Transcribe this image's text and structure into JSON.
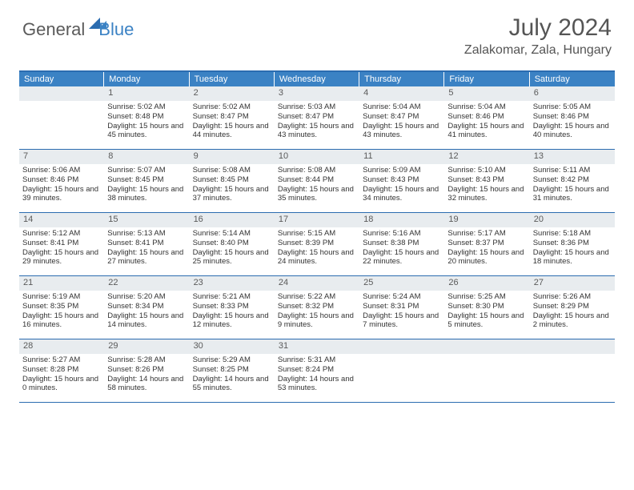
{
  "logo": {
    "text1": "General",
    "text2": "Blue"
  },
  "title": "July 2024",
  "location": "Zalakomar, Zala, Hungary",
  "colors": {
    "header_bg": "#3b82c4",
    "border": "#2b6cb0",
    "daynum_bg": "#e8ecef",
    "text": "#333333",
    "title_text": "#555555"
  },
  "weekdays": [
    "Sunday",
    "Monday",
    "Tuesday",
    "Wednesday",
    "Thursday",
    "Friday",
    "Saturday"
  ],
  "weeks": [
    [
      {
        "n": "",
        "sr": "",
        "ss": "",
        "dl": ""
      },
      {
        "n": "1",
        "sr": "Sunrise: 5:02 AM",
        "ss": "Sunset: 8:48 PM",
        "dl": "Daylight: 15 hours and 45 minutes."
      },
      {
        "n": "2",
        "sr": "Sunrise: 5:02 AM",
        "ss": "Sunset: 8:47 PM",
        "dl": "Daylight: 15 hours and 44 minutes."
      },
      {
        "n": "3",
        "sr": "Sunrise: 5:03 AM",
        "ss": "Sunset: 8:47 PM",
        "dl": "Daylight: 15 hours and 43 minutes."
      },
      {
        "n": "4",
        "sr": "Sunrise: 5:04 AM",
        "ss": "Sunset: 8:47 PM",
        "dl": "Daylight: 15 hours and 43 minutes."
      },
      {
        "n": "5",
        "sr": "Sunrise: 5:04 AM",
        "ss": "Sunset: 8:46 PM",
        "dl": "Daylight: 15 hours and 41 minutes."
      },
      {
        "n": "6",
        "sr": "Sunrise: 5:05 AM",
        "ss": "Sunset: 8:46 PM",
        "dl": "Daylight: 15 hours and 40 minutes."
      }
    ],
    [
      {
        "n": "7",
        "sr": "Sunrise: 5:06 AM",
        "ss": "Sunset: 8:46 PM",
        "dl": "Daylight: 15 hours and 39 minutes."
      },
      {
        "n": "8",
        "sr": "Sunrise: 5:07 AM",
        "ss": "Sunset: 8:45 PM",
        "dl": "Daylight: 15 hours and 38 minutes."
      },
      {
        "n": "9",
        "sr": "Sunrise: 5:08 AM",
        "ss": "Sunset: 8:45 PM",
        "dl": "Daylight: 15 hours and 37 minutes."
      },
      {
        "n": "10",
        "sr": "Sunrise: 5:08 AM",
        "ss": "Sunset: 8:44 PM",
        "dl": "Daylight: 15 hours and 35 minutes."
      },
      {
        "n": "11",
        "sr": "Sunrise: 5:09 AM",
        "ss": "Sunset: 8:43 PM",
        "dl": "Daylight: 15 hours and 34 minutes."
      },
      {
        "n": "12",
        "sr": "Sunrise: 5:10 AM",
        "ss": "Sunset: 8:43 PM",
        "dl": "Daylight: 15 hours and 32 minutes."
      },
      {
        "n": "13",
        "sr": "Sunrise: 5:11 AM",
        "ss": "Sunset: 8:42 PM",
        "dl": "Daylight: 15 hours and 31 minutes."
      }
    ],
    [
      {
        "n": "14",
        "sr": "Sunrise: 5:12 AM",
        "ss": "Sunset: 8:41 PM",
        "dl": "Daylight: 15 hours and 29 minutes."
      },
      {
        "n": "15",
        "sr": "Sunrise: 5:13 AM",
        "ss": "Sunset: 8:41 PM",
        "dl": "Daylight: 15 hours and 27 minutes."
      },
      {
        "n": "16",
        "sr": "Sunrise: 5:14 AM",
        "ss": "Sunset: 8:40 PM",
        "dl": "Daylight: 15 hours and 25 minutes."
      },
      {
        "n": "17",
        "sr": "Sunrise: 5:15 AM",
        "ss": "Sunset: 8:39 PM",
        "dl": "Daylight: 15 hours and 24 minutes."
      },
      {
        "n": "18",
        "sr": "Sunrise: 5:16 AM",
        "ss": "Sunset: 8:38 PM",
        "dl": "Daylight: 15 hours and 22 minutes."
      },
      {
        "n": "19",
        "sr": "Sunrise: 5:17 AM",
        "ss": "Sunset: 8:37 PM",
        "dl": "Daylight: 15 hours and 20 minutes."
      },
      {
        "n": "20",
        "sr": "Sunrise: 5:18 AM",
        "ss": "Sunset: 8:36 PM",
        "dl": "Daylight: 15 hours and 18 minutes."
      }
    ],
    [
      {
        "n": "21",
        "sr": "Sunrise: 5:19 AM",
        "ss": "Sunset: 8:35 PM",
        "dl": "Daylight: 15 hours and 16 minutes."
      },
      {
        "n": "22",
        "sr": "Sunrise: 5:20 AM",
        "ss": "Sunset: 8:34 PM",
        "dl": "Daylight: 15 hours and 14 minutes."
      },
      {
        "n": "23",
        "sr": "Sunrise: 5:21 AM",
        "ss": "Sunset: 8:33 PM",
        "dl": "Daylight: 15 hours and 12 minutes."
      },
      {
        "n": "24",
        "sr": "Sunrise: 5:22 AM",
        "ss": "Sunset: 8:32 PM",
        "dl": "Daylight: 15 hours and 9 minutes."
      },
      {
        "n": "25",
        "sr": "Sunrise: 5:24 AM",
        "ss": "Sunset: 8:31 PM",
        "dl": "Daylight: 15 hours and 7 minutes."
      },
      {
        "n": "26",
        "sr": "Sunrise: 5:25 AM",
        "ss": "Sunset: 8:30 PM",
        "dl": "Daylight: 15 hours and 5 minutes."
      },
      {
        "n": "27",
        "sr": "Sunrise: 5:26 AM",
        "ss": "Sunset: 8:29 PM",
        "dl": "Daylight: 15 hours and 2 minutes."
      }
    ],
    [
      {
        "n": "28",
        "sr": "Sunrise: 5:27 AM",
        "ss": "Sunset: 8:28 PM",
        "dl": "Daylight: 15 hours and 0 minutes."
      },
      {
        "n": "29",
        "sr": "Sunrise: 5:28 AM",
        "ss": "Sunset: 8:26 PM",
        "dl": "Daylight: 14 hours and 58 minutes."
      },
      {
        "n": "30",
        "sr": "Sunrise: 5:29 AM",
        "ss": "Sunset: 8:25 PM",
        "dl": "Daylight: 14 hours and 55 minutes."
      },
      {
        "n": "31",
        "sr": "Sunrise: 5:31 AM",
        "ss": "Sunset: 8:24 PM",
        "dl": "Daylight: 14 hours and 53 minutes."
      },
      {
        "n": "",
        "sr": "",
        "ss": "",
        "dl": ""
      },
      {
        "n": "",
        "sr": "",
        "ss": "",
        "dl": ""
      },
      {
        "n": "",
        "sr": "",
        "ss": "",
        "dl": ""
      }
    ]
  ]
}
